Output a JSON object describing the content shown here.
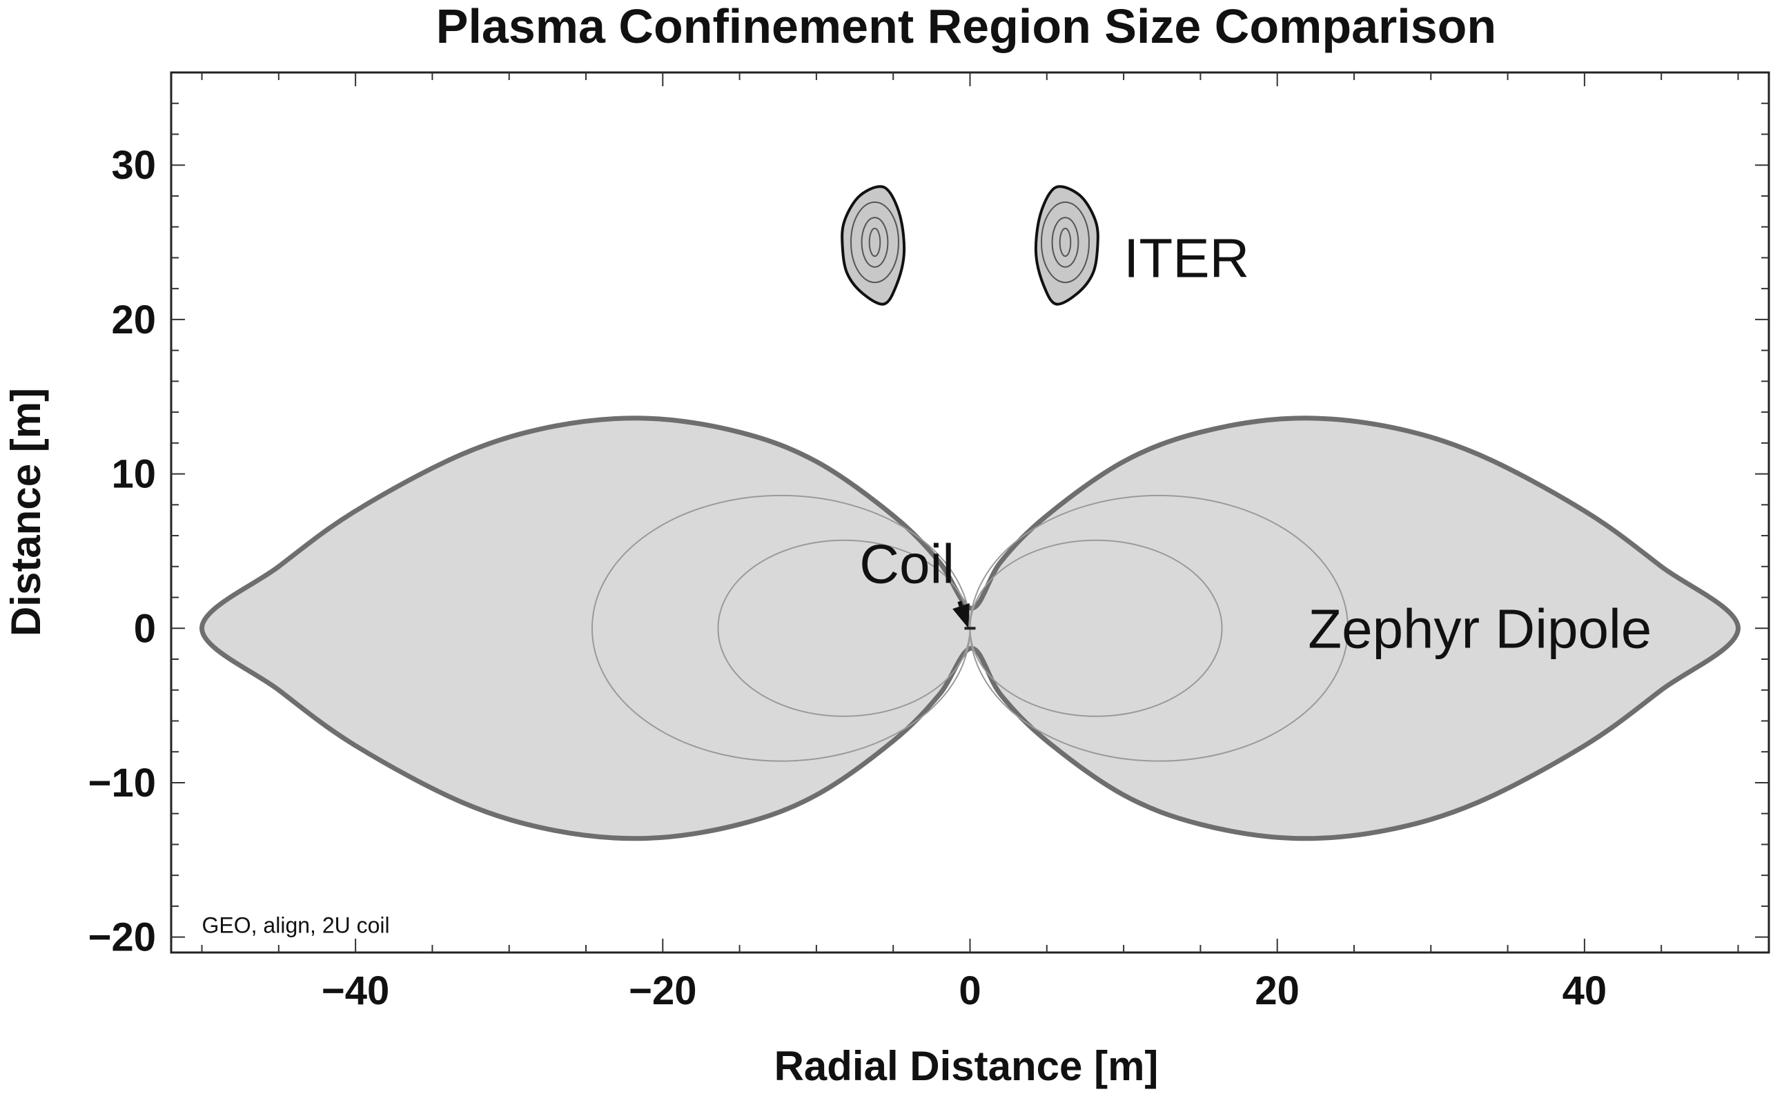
{
  "chart_data": {
    "type": "scatter",
    "title": "Plasma Confinement Region Size Comparison",
    "xlabel": "Radial Distance [m]",
    "ylabel": "Distance [m]",
    "xlim": [
      -52,
      52
    ],
    "ylim": [
      -21,
      36
    ],
    "x_ticks": [
      -40,
      -20,
      0,
      20,
      40
    ],
    "y_ticks": [
      -20,
      -10,
      0,
      10,
      20,
      30
    ],
    "x_tick_labels": [
      "−40",
      "−20",
      "0",
      "20",
      "40"
    ],
    "y_tick_labels": [
      "−20",
      "−10",
      "0",
      "10",
      "20",
      "30"
    ],
    "grid": false,
    "colors": {
      "dipole_fill": "#d9d9d9",
      "dipole_outline": "#6e6e6e",
      "iter_fill": "#c8c8c8",
      "iter_outline": "#111111",
      "contour": "#9a9a9a"
    },
    "series": [
      {
        "name": "Zephyr Dipole",
        "outline_right": [
          [
            0.1,
            1.3
          ],
          [
            2,
            4.3
          ],
          [
            5,
            7.3
          ],
          [
            10,
            10.8
          ],
          [
            15,
            12.7
          ],
          [
            21,
            13.6
          ],
          [
            27,
            13.1
          ],
          [
            33,
            11.3
          ],
          [
            40,
            7.6
          ],
          [
            45,
            4.0
          ],
          [
            50,
            0
          ]
        ],
        "inner_contours": [
          {
            "cx": 12.3,
            "rx": 12.3,
            "ry": 8.6
          },
          {
            "cx": 8.2,
            "rx": 8.2,
            "ry": 5.7
          }
        ]
      },
      {
        "name": "ITER",
        "cx": 6.2,
        "cy": 25,
        "outline": [
          [
            6,
            28.6
          ],
          [
            7.3,
            27.9
          ],
          [
            8.2,
            26.3
          ],
          [
            8.3,
            24.7
          ],
          [
            8.0,
            23.0
          ],
          [
            7.0,
            21.7
          ],
          [
            5.6,
            21.0
          ],
          [
            4.8,
            22.2
          ],
          [
            4.3,
            24.2
          ],
          [
            4.5,
            26.5
          ],
          [
            5.2,
            28.2
          ]
        ],
        "inner_contours": [
          {
            "rx": 1.55,
            "ry": 2.6
          },
          {
            "rx": 0.85,
            "ry": 1.6
          },
          {
            "rx": 0.35,
            "ry": 0.9
          }
        ]
      }
    ],
    "annotations": [
      {
        "text": "ITER",
        "x": 10,
        "y": 24
      },
      {
        "text": "Coil",
        "x": -7.2,
        "y": 4.2,
        "arrow_to": [
          -0.1,
          0
        ]
      },
      {
        "text": "Zephyr Dipole",
        "x": 22,
        "y": 0
      },
      {
        "text": "GEO, align, 2U coil",
        "x": -50,
        "y": -19.2
      }
    ]
  }
}
